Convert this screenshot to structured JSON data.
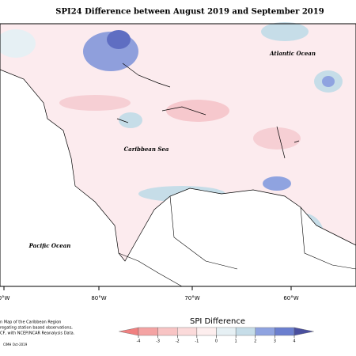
{
  "title": "SPI24 Difference between August 2019 and September 2019",
  "labels": [
    "Atlantic Ocean",
    "Caribbean Sea",
    "Pacific Ocean"
  ],
  "lon_ticks": [
    "0°W",
    "80°W",
    "70°W",
    "60°W"
  ],
  "legend": {
    "title": "SPI Difference",
    "ticks": [
      -4,
      -3,
      -2,
      -1,
      0,
      1,
      2,
      3,
      4
    ],
    "colors": [
      "#f08080",
      "#f4a3a3",
      "#f8c4c4",
      "#fbdada",
      "#fdeeee",
      "#e6f0f4",
      "#c6dde8",
      "#8fa3e0",
      "#6b7fcf",
      "#4a4f9e"
    ]
  },
  "footnote": [
    "n Map of the Caribbean Region",
    "regating station based observations,",
    "CF, with NCEP/NCAR Reanalysis Data.",
    "CIMH Oct-2019"
  ]
}
